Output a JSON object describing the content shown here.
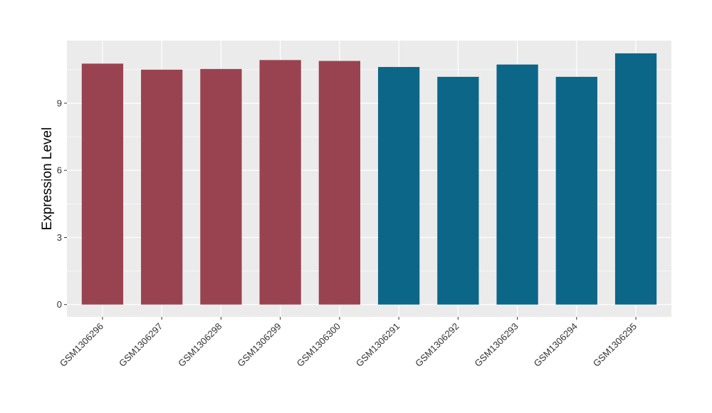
{
  "chart_data": {
    "type": "bar",
    "title": "",
    "xlabel": "",
    "ylabel": "Expression Level",
    "categories": [
      "GSM1306296",
      "GSM1306297",
      "GSM1306298",
      "GSM1306299",
      "GSM1306300",
      "GSM1306291",
      "GSM1306292",
      "GSM1306293",
      "GSM1306294",
      "GSM1306295"
    ],
    "values": [
      10.77,
      10.5,
      10.53,
      10.93,
      10.89,
      10.62,
      10.18,
      10.73,
      10.18,
      11.23
    ],
    "groups": [
      1,
      1,
      1,
      1,
      1,
      2,
      2,
      2,
      2,
      2
    ],
    "group_colors": {
      "1": "#9A4350",
      "2": "#0C6687"
    },
    "ylim": [
      -0.55,
      11.8
    ],
    "yticks": [
      0,
      3,
      6,
      9
    ],
    "ytick_labels": [
      "0",
      "3",
      "6",
      "9"
    ],
    "grid": true,
    "legend": "none",
    "panel_background": "#EBEBEB",
    "grid_color": "#FFFFFF"
  }
}
